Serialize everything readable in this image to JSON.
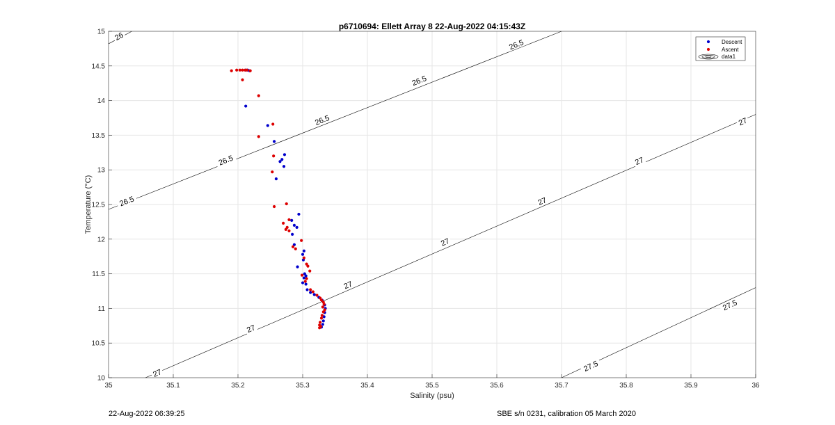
{
  "chart_data": {
    "type": "scatter",
    "title": "p6710694: Ellett Array 8 22-Aug-2022 04:15:43Z",
    "xlabel": "Salinity (psu)",
    "ylabel": "Temperature (°C)",
    "xlim": [
      35,
      36
    ],
    "ylim": [
      10,
      15
    ],
    "xticks": [
      35,
      35.1,
      35.2,
      35.3,
      35.4,
      35.5,
      35.6,
      35.7,
      35.8,
      35.9,
      36
    ],
    "xtick_labels": [
      "35",
      "35.1",
      "35.2",
      "35.3",
      "35.4",
      "35.5",
      "35.6",
      "35.7",
      "35.8",
      "35.9",
      "36"
    ],
    "yticks": [
      10,
      10.5,
      11,
      11.5,
      12,
      12.5,
      13,
      13.5,
      14,
      14.5,
      15
    ],
    "ytick_labels": [
      "10",
      "10.5",
      "11",
      "11.5",
      "12",
      "12.5",
      "13",
      "13.5",
      "14",
      "14.5",
      "15"
    ],
    "grid": true,
    "legend_position": "top-right",
    "series": [
      {
        "name": "Descent",
        "color": "#0000cc",
        "points": [
          [
            35.215,
            14.44
          ],
          [
            35.218,
            14.43
          ],
          [
            35.212,
            14.44
          ],
          [
            35.212,
            13.92
          ],
          [
            35.246,
            13.64
          ],
          [
            35.256,
            13.41
          ],
          [
            35.272,
            13.22
          ],
          [
            35.268,
            13.15
          ],
          [
            35.265,
            13.12
          ],
          [
            35.271,
            13.05
          ],
          [
            35.259,
            12.87
          ],
          [
            35.294,
            12.36
          ],
          [
            35.283,
            12.27
          ],
          [
            35.287,
            12.2
          ],
          [
            35.291,
            12.17
          ],
          [
            35.284,
            12.07
          ],
          [
            35.287,
            11.92
          ],
          [
            35.302,
            11.83
          ],
          [
            35.3,
            11.78
          ],
          [
            35.301,
            11.7
          ],
          [
            35.292,
            11.6
          ],
          [
            35.303,
            11.5
          ],
          [
            35.305,
            11.47
          ],
          [
            35.302,
            11.44
          ],
          [
            35.3,
            11.37
          ],
          [
            35.305,
            11.35
          ],
          [
            35.307,
            11.27
          ],
          [
            35.312,
            11.23
          ],
          [
            35.318,
            11.2
          ],
          [
            35.325,
            11.16
          ],
          [
            35.33,
            11.12
          ],
          [
            35.334,
            11.05
          ],
          [
            35.335,
            11.0
          ],
          [
            35.334,
            10.94
          ],
          [
            35.333,
            10.88
          ],
          [
            35.332,
            10.82
          ],
          [
            35.331,
            10.77
          ],
          [
            35.329,
            10.73
          ]
        ]
      },
      {
        "name": "Ascent",
        "color": "#dd0000",
        "points": [
          [
            35.19,
            14.43
          ],
          [
            35.198,
            14.44
          ],
          [
            35.203,
            14.44
          ],
          [
            35.207,
            14.44
          ],
          [
            35.211,
            14.44
          ],
          [
            35.214,
            14.44
          ],
          [
            35.219,
            14.43
          ],
          [
            35.207,
            14.3
          ],
          [
            35.232,
            14.07
          ],
          [
            35.254,
            13.66
          ],
          [
            35.232,
            13.48
          ],
          [
            35.255,
            13.2
          ],
          [
            35.253,
            12.97
          ],
          [
            35.256,
            12.47
          ],
          [
            35.275,
            12.51
          ],
          [
            35.279,
            12.28
          ],
          [
            35.27,
            12.23
          ],
          [
            35.276,
            12.17
          ],
          [
            35.274,
            12.14
          ],
          [
            35.279,
            12.12
          ],
          [
            35.298,
            11.98
          ],
          [
            35.285,
            11.89
          ],
          [
            35.289,
            11.86
          ],
          [
            35.302,
            11.73
          ],
          [
            35.306,
            11.64
          ],
          [
            35.308,
            11.61
          ],
          [
            35.311,
            11.54
          ],
          [
            35.299,
            11.48
          ],
          [
            35.306,
            11.43
          ],
          [
            35.304,
            11.39
          ],
          [
            35.312,
            11.27
          ],
          [
            35.316,
            11.24
          ],
          [
            35.322,
            11.19
          ],
          [
            35.327,
            11.15
          ],
          [
            35.329,
            11.12
          ],
          [
            35.332,
            11.09
          ],
          [
            35.333,
            11.06
          ],
          [
            35.331,
            11.02
          ],
          [
            35.334,
            10.98
          ],
          [
            35.332,
            10.95
          ],
          [
            35.33,
            10.9
          ],
          [
            35.329,
            10.86
          ],
          [
            35.327,
            10.8
          ],
          [
            35.326,
            10.76
          ],
          [
            35.328,
            10.74
          ],
          [
            35.326,
            10.72
          ]
        ]
      }
    ],
    "contours": [
      {
        "level": "26",
        "line": [
          [
            35.0,
            14.82
          ],
          [
            35.036,
            15.0
          ]
        ],
        "labels": [
          [
            35.016,
            14.93,
            "26"
          ]
        ]
      },
      {
        "level": "26.5",
        "line": [
          [
            35.0,
            12.43
          ],
          [
            35.7,
            15.0
          ]
        ],
        "labels": [
          [
            35.028,
            12.55,
            "26.5"
          ],
          [
            35.181,
            13.14,
            "26.5"
          ],
          [
            35.33,
            13.72,
            "26.5"
          ],
          [
            35.48,
            14.29,
            "26.5"
          ],
          [
            35.63,
            14.81,
            "26.5"
          ]
        ]
      },
      {
        "level": "27",
        "line": [
          [
            35.057,
            10.0
          ],
          [
            36.0,
            13.8
          ]
        ],
        "labels": [
          [
            35.075,
            10.07,
            "27"
          ],
          [
            35.22,
            10.71,
            "27"
          ],
          [
            35.37,
            11.34,
            "27"
          ],
          [
            35.52,
            11.96,
            "27"
          ],
          [
            35.67,
            12.55,
            "27"
          ],
          [
            35.82,
            13.13,
            "27"
          ],
          [
            35.98,
            13.7,
            "27"
          ]
        ]
      },
      {
        "level": "27.5",
        "line": [
          [
            35.7,
            10.0
          ],
          [
            36.0,
            11.3
          ]
        ],
        "labels": [
          [
            35.745,
            10.17,
            "27.5"
          ],
          [
            35.96,
            11.05,
            "27.5"
          ]
        ]
      }
    ]
  },
  "legend": {
    "items": [
      {
        "label": "Descent",
        "color": "#0000cc",
        "kind": "marker"
      },
      {
        "label": "Ascent",
        "color": "#dd0000",
        "kind": "marker"
      },
      {
        "label": "data1",
        "color": "#000000",
        "kind": "contour-icon"
      }
    ]
  },
  "footer": {
    "timestamp": "22-Aug-2022 06:39:25",
    "sensor": "SBE s/n 0231, calibration 05 March 2020"
  }
}
